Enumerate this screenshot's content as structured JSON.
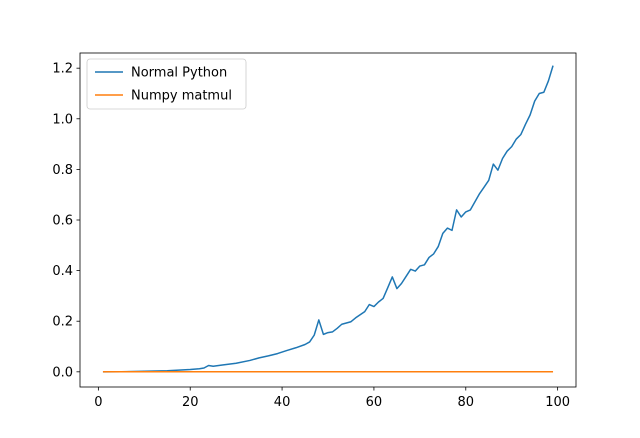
{
  "chart_data": {
    "type": "line",
    "title": "",
    "xlabel": "",
    "ylabel": "",
    "xlim": [
      -4,
      104
    ],
    "ylim": [
      -0.06,
      1.26
    ],
    "x_ticks": [
      0,
      20,
      40,
      60,
      80,
      100
    ],
    "y_ticks": [
      0.0,
      0.2,
      0.4,
      0.6,
      0.8,
      1.0,
      1.2
    ],
    "x_tick_labels": [
      "0",
      "20",
      "40",
      "60",
      "80",
      "100"
    ],
    "y_tick_labels": [
      "0.0",
      "0.2",
      "0.4",
      "0.6",
      "0.8",
      "1.0",
      "1.2"
    ],
    "legend_position": "top-left",
    "grid": false,
    "series": [
      {
        "name": "Normal Python",
        "color": "#1f77b4",
        "points": [
          [
            1,
            0.0
          ],
          [
            5,
            0.0005
          ],
          [
            10,
            0.002
          ],
          [
            15,
            0.004
          ],
          [
            20,
            0.009
          ],
          [
            22,
            0.012
          ],
          [
            23,
            0.015
          ],
          [
            24,
            0.025
          ],
          [
            25,
            0.022
          ],
          [
            27,
            0.027
          ],
          [
            30,
            0.034
          ],
          [
            33,
            0.045
          ],
          [
            35,
            0.055
          ],
          [
            37,
            0.063
          ],
          [
            39,
            0.072
          ],
          [
            41,
            0.084
          ],
          [
            43,
            0.095
          ],
          [
            45,
            0.108
          ],
          [
            46,
            0.118
          ],
          [
            47,
            0.145
          ],
          [
            48,
            0.205
          ],
          [
            49,
            0.148
          ],
          [
            50,
            0.155
          ],
          [
            51,
            0.158
          ],
          [
            52,
            0.172
          ],
          [
            53,
            0.188
          ],
          [
            55,
            0.198
          ],
          [
            56,
            0.213
          ],
          [
            58,
            0.238
          ],
          [
            59,
            0.266
          ],
          [
            60,
            0.258
          ],
          [
            61,
            0.276
          ],
          [
            62,
            0.29
          ],
          [
            63,
            0.332
          ],
          [
            64,
            0.375
          ],
          [
            65,
            0.329
          ],
          [
            66,
            0.349
          ],
          [
            67,
            0.377
          ],
          [
            68,
            0.405
          ],
          [
            69,
            0.398
          ],
          [
            70,
            0.418
          ],
          [
            71,
            0.423
          ],
          [
            72,
            0.452
          ],
          [
            73,
            0.466
          ],
          [
            74,
            0.495
          ],
          [
            75,
            0.547
          ],
          [
            76,
            0.568
          ],
          [
            77,
            0.559
          ],
          [
            78,
            0.64
          ],
          [
            79,
            0.612
          ],
          [
            80,
            0.632
          ],
          [
            81,
            0.64
          ],
          [
            82,
            0.672
          ],
          [
            83,
            0.704
          ],
          [
            84,
            0.73
          ],
          [
            85,
            0.757
          ],
          [
            86,
            0.821
          ],
          [
            87,
            0.797
          ],
          [
            88,
            0.843
          ],
          [
            89,
            0.872
          ],
          [
            90,
            0.89
          ],
          [
            91,
            0.92
          ],
          [
            92,
            0.938
          ],
          [
            93,
            0.978
          ],
          [
            94,
            1.015
          ],
          [
            95,
            1.07
          ],
          [
            96,
            1.1
          ],
          [
            97,
            1.105
          ],
          [
            98,
            1.15
          ],
          [
            99,
            1.21
          ]
        ]
      },
      {
        "name": "Numpy matmul",
        "color": "#ff7f0e",
        "points": [
          [
            1,
            0.0005
          ],
          [
            10,
            0.0005
          ],
          [
            20,
            0.0005
          ],
          [
            30,
            0.0005
          ],
          [
            40,
            0.0005
          ],
          [
            50,
            0.0005
          ],
          [
            60,
            0.0005
          ],
          [
            70,
            0.0005
          ],
          [
            80,
            0.0005
          ],
          [
            90,
            0.0005
          ],
          [
            99,
            0.0005
          ]
        ]
      }
    ]
  }
}
